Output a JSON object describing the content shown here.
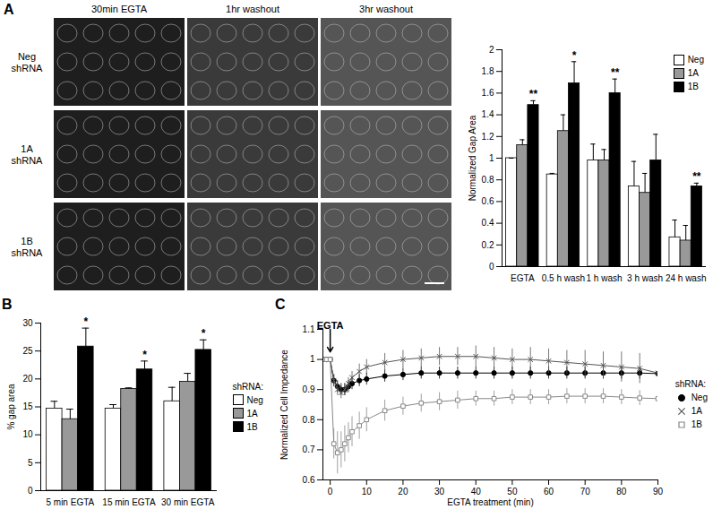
{
  "micrographs": {
    "panel": "A",
    "columns": [
      "30min EGTA",
      "1hr washout",
      "3hr washout"
    ],
    "rows": [
      [
        "Neg",
        "shRNA"
      ],
      [
        "1A",
        "shRNA"
      ],
      [
        "1B",
        "shRNA"
      ]
    ]
  },
  "chart_data": [
    {
      "type": "bar",
      "categories": [
        "EGTA",
        "0.5 h wash",
        "1 h wash",
        "3 h wash",
        "24 h wash"
      ],
      "series": [
        {
          "name": "Neg",
          "color": "#ffffff",
          "values": [
            1.0,
            0.85,
            0.98,
            0.74,
            0.27
          ],
          "errors": [
            0,
            0.01,
            0.15,
            0.23,
            0.16
          ]
        },
        {
          "name": "1A",
          "color": "#999999",
          "values": [
            1.12,
            1.25,
            0.98,
            0.68,
            0.24
          ],
          "errors": [
            0.05,
            0.15,
            0.1,
            0.18,
            0.14
          ]
        },
        {
          "name": "1B",
          "color": "#000000",
          "values": [
            1.49,
            1.69,
            1.6,
            0.98,
            0.74
          ],
          "errors": [
            0.04,
            0.2,
            0.13,
            0.24,
            0.03
          ]
        }
      ],
      "ylabel": "Normalized Gap Area",
      "ylim": [
        0,
        2
      ],
      "yticks": [
        0,
        0.2,
        0.4,
        0.6,
        0.8,
        1,
        1.2,
        1.4,
        1.6,
        1.8,
        2
      ],
      "legend": "top-right",
      "annotations": [
        {
          "category_index": 0,
          "series": "1B",
          "text": "**"
        },
        {
          "category_index": 1,
          "series": "1B",
          "text": "*"
        },
        {
          "category_index": 2,
          "series": "1B",
          "text": "**"
        },
        {
          "category_index": 4,
          "series": "1B",
          "text": "**"
        }
      ]
    },
    {
      "type": "bar",
      "panel": "B",
      "categories": [
        "5 min EGTA",
        "15 min EGTA",
        "30 min EGTA"
      ],
      "series": [
        {
          "name": "Neg",
          "color": "#ffffff",
          "values": [
            14.7,
            14.7,
            16
          ],
          "errors": [
            1.3,
            0.7,
            2.5
          ]
        },
        {
          "name": "1A",
          "color": "#999999",
          "values": [
            12.8,
            18.2,
            19.5
          ],
          "errors": [
            1.8,
            0.2,
            1.5
          ]
        },
        {
          "name": "1B",
          "color": "#000000",
          "values": [
            25.8,
            21.7,
            25.2
          ],
          "errors": [
            3.3,
            1.5,
            1.8
          ]
        }
      ],
      "ylabel": "% gap area",
      "ylim": [
        0,
        30
      ],
      "yticks": [
        0,
        5,
        10,
        15,
        20,
        25,
        30
      ],
      "legend": "right",
      "legend_title": "shRNA:",
      "annotations": [
        {
          "category_index": 0,
          "series": "1B",
          "text": "*"
        },
        {
          "category_index": 1,
          "series": "1B",
          "text": "*"
        },
        {
          "category_index": 2,
          "series": "1B",
          "text": "*"
        }
      ]
    },
    {
      "type": "line",
      "panel": "C",
      "x": [
        -2,
        -1,
        0,
        1,
        2,
        3,
        4,
        5,
        6,
        8,
        10,
        15,
        20,
        25,
        30,
        35,
        40,
        45,
        50,
        55,
        60,
        65,
        70,
        75,
        80,
        85,
        90
      ],
      "series": [
        {
          "name": "Neg",
          "color": "#000000",
          "marker": "circle",
          "values": [
            1,
            1,
            1,
            0.93,
            0.91,
            0.9,
            0.9,
            0.91,
            0.92,
            0.93,
            0.935,
            0.945,
            0.95,
            0.955,
            0.955,
            0.955,
            0.955,
            0.955,
            0.955,
            0.955,
            0.955,
            0.955,
            0.955,
            0.955,
            0.955,
            0.955,
            0.953
          ],
          "errors": [
            0,
            0,
            0,
            0.02,
            0.02,
            0.02,
            0.02,
            0.02,
            0.02,
            0.02,
            0.02,
            0.02,
            0.02,
            0.02,
            0.02,
            0.02,
            0.02,
            0.02,
            0.02,
            0.02,
            0.02,
            0.02,
            0.02,
            0.02,
            0.02,
            0.02,
            0.02
          ]
        },
        {
          "name": "1A",
          "color": "#555555",
          "marker": "x",
          "values": [
            1,
            1,
            1,
            0.93,
            0.9,
            0.89,
            0.9,
            0.92,
            0.94,
            0.96,
            0.975,
            0.99,
            1.0,
            1.005,
            1.01,
            1.01,
            1.01,
            1.005,
            1.0,
            1.0,
            0.995,
            0.99,
            0.985,
            0.98,
            0.975,
            0.97,
            0.955
          ],
          "errors": [
            0,
            0,
            0,
            0.02,
            0.02,
            0.02,
            0.02,
            0.02,
            0.02,
            0.025,
            0.025,
            0.03,
            0.03,
            0.03,
            0.03,
            0.03,
            0.035,
            0.035,
            0.035,
            0.04,
            0.04,
            0.04,
            0.045,
            0.045,
            0.05,
            0.05,
            0.05
          ]
        },
        {
          "name": "1B",
          "color": "#888888",
          "marker": "square",
          "values": [
            1,
            1,
            1,
            0.72,
            0.69,
            0.7,
            0.72,
            0.74,
            0.76,
            0.78,
            0.8,
            0.83,
            0.845,
            0.855,
            0.86,
            0.865,
            0.87,
            0.87,
            0.875,
            0.875,
            0.875,
            0.878,
            0.878,
            0.878,
            0.875,
            0.872,
            0.87
          ],
          "errors": [
            0,
            0,
            0,
            0.05,
            0.07,
            0.06,
            0.06,
            0.05,
            0.05,
            0.045,
            0.04,
            0.035,
            0.03,
            0.03,
            0.03,
            0.03,
            0.025,
            0.025,
            0.025,
            0.025,
            0.025,
            0.025,
            0.025,
            0.025,
            0.025,
            0.025,
            0.025
          ]
        }
      ],
      "xlabel": "EGTA treatment (min)",
      "ylabel": "Normalized Cell Impedance",
      "xlim": [
        -2,
        90
      ],
      "xticks": [
        0,
        10,
        20,
        30,
        40,
        50,
        60,
        70,
        80,
        90
      ],
      "ylim": [
        0.6,
        1.1
      ],
      "yticks": [
        0.6,
        0.7,
        0.8,
        0.9,
        1,
        1.1
      ],
      "legend": "right",
      "legend_title": "shRNA:",
      "annotations": [
        {
          "x": 0,
          "y": 1.1,
          "text": "EGTA"
        }
      ]
    }
  ]
}
